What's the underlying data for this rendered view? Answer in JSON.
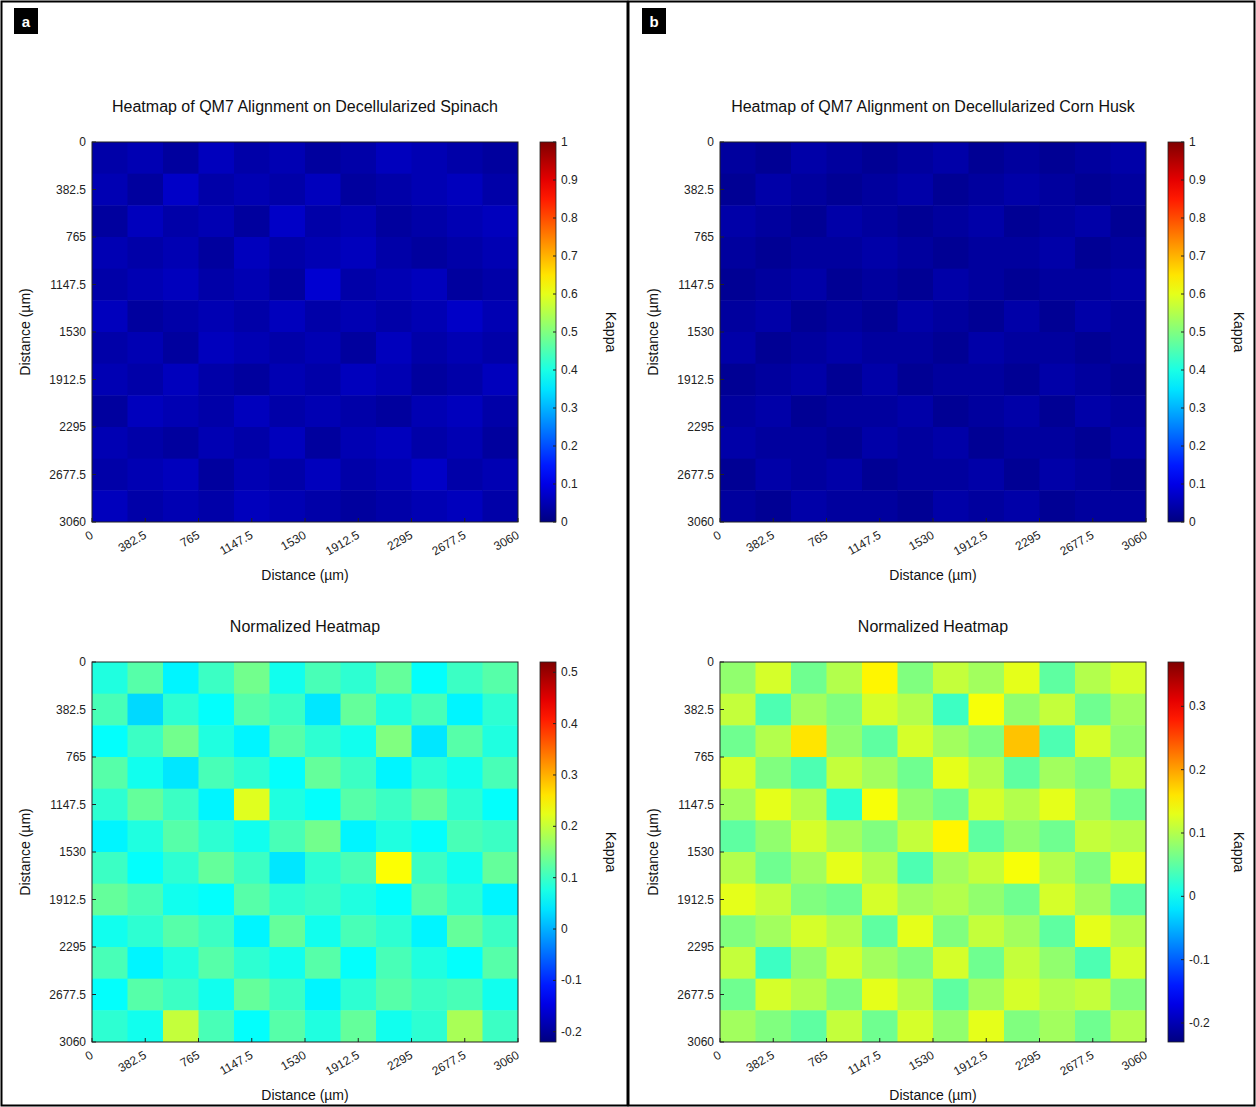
{
  "chart_data": [
    {
      "type": "heatmap",
      "panel_label": "a",
      "title": "Heatmap of QM7 Alignment on Decellularized Spinach",
      "x_label": "Distance (µm)",
      "y_label": "Distance (µm)",
      "xlim": [
        0,
        3060
      ],
      "ylim": [
        0,
        3060
      ],
      "xticks": [
        0,
        382.5,
        765,
        1147.5,
        1530,
        1912.5,
        2295,
        2677.5,
        3060
      ],
      "yticks": [
        0,
        382.5,
        765,
        1147.5,
        1530,
        1912.5,
        2295,
        2677.5,
        3060
      ],
      "colorbar": {
        "label": "Kappa",
        "lim": [
          0,
          1
        ],
        "ticks": [
          0,
          0.1,
          0.2,
          0.3,
          0.4,
          0.5,
          0.6,
          0.7,
          0.8,
          0.9,
          1
        ]
      },
      "cells": [
        [
          0.04,
          0.05,
          0.03,
          0.06,
          0.04,
          0.05,
          0.03,
          0.04,
          0.06,
          0.05,
          0.04,
          0.03
        ],
        [
          0.05,
          0.03,
          0.07,
          0.04,
          0.05,
          0.04,
          0.06,
          0.03,
          0.04,
          0.05,
          0.06,
          0.04
        ],
        [
          0.03,
          0.06,
          0.04,
          0.05,
          0.03,
          0.07,
          0.04,
          0.05,
          0.03,
          0.04,
          0.05,
          0.06
        ],
        [
          0.05,
          0.04,
          0.05,
          0.03,
          0.06,
          0.04,
          0.05,
          0.06,
          0.04,
          0.03,
          0.04,
          0.05
        ],
        [
          0.04,
          0.05,
          0.06,
          0.04,
          0.05,
          0.03,
          0.08,
          0.04,
          0.05,
          0.06,
          0.03,
          0.04
        ],
        [
          0.06,
          0.03,
          0.04,
          0.05,
          0.04,
          0.06,
          0.04,
          0.05,
          0.04,
          0.05,
          0.07,
          0.05
        ],
        [
          0.04,
          0.05,
          0.03,
          0.06,
          0.05,
          0.04,
          0.05,
          0.03,
          0.06,
          0.04,
          0.05,
          0.04
        ],
        [
          0.05,
          0.04,
          0.06,
          0.04,
          0.03,
          0.05,
          0.04,
          0.06,
          0.05,
          0.03,
          0.04,
          0.06
        ],
        [
          0.03,
          0.06,
          0.05,
          0.04,
          0.06,
          0.04,
          0.05,
          0.04,
          0.03,
          0.05,
          0.06,
          0.04
        ],
        [
          0.05,
          0.04,
          0.03,
          0.05,
          0.04,
          0.06,
          0.03,
          0.05,
          0.06,
          0.04,
          0.05,
          0.03
        ],
        [
          0.04,
          0.05,
          0.06,
          0.03,
          0.05,
          0.04,
          0.06,
          0.04,
          0.05,
          0.07,
          0.04,
          0.05
        ],
        [
          0.06,
          0.04,
          0.05,
          0.04,
          0.06,
          0.05,
          0.04,
          0.03,
          0.04,
          0.05,
          0.06,
          0.04
        ]
      ]
    },
    {
      "type": "heatmap",
      "title": "Normalized Heatmap",
      "x_label": "Distance (µm)",
      "y_label": "Distance (µm)",
      "xlim": [
        0,
        3060
      ],
      "ylim": [
        0,
        3060
      ],
      "xticks": [
        0,
        382.5,
        765,
        1147.5,
        1530,
        1912.5,
        2295,
        2677.5,
        3060
      ],
      "yticks": [
        0,
        382.5,
        765,
        1147.5,
        1530,
        1912.5,
        2295,
        2677.5,
        3060
      ],
      "colorbar": {
        "label": "Kappa",
        "lim": [
          -0.22,
          0.52
        ],
        "ticks": [
          -0.2,
          -0.1,
          0,
          0.1,
          0.2,
          0.3,
          0.4,
          0.5
        ]
      },
      "cells": [
        [
          0.08,
          0.12,
          0.05,
          0.1,
          0.14,
          0.07,
          0.11,
          0.09,
          0.13,
          0.06,
          0.1,
          0.12
        ],
        [
          0.11,
          0.03,
          0.09,
          0.06,
          0.12,
          0.1,
          0.04,
          0.13,
          0.08,
          0.11,
          0.05,
          0.09
        ],
        [
          0.06,
          0.1,
          0.14,
          0.08,
          0.05,
          0.12,
          0.09,
          0.07,
          0.15,
          0.04,
          0.12,
          0.08
        ],
        [
          0.12,
          0.07,
          0.04,
          0.11,
          0.09,
          0.06,
          0.13,
          0.1,
          0.05,
          0.09,
          0.07,
          0.11
        ],
        [
          0.09,
          0.13,
          0.1,
          0.05,
          0.22,
          0.08,
          0.06,
          0.12,
          0.1,
          0.13,
          0.09,
          0.06
        ],
        [
          0.05,
          0.08,
          0.12,
          0.09,
          0.07,
          0.11,
          0.14,
          0.05,
          0.08,
          0.06,
          0.11,
          0.1
        ],
        [
          0.1,
          0.06,
          0.09,
          0.13,
          0.1,
          0.04,
          0.09,
          0.11,
          0.24,
          0.1,
          0.07,
          0.13
        ],
        [
          0.13,
          0.11,
          0.07,
          0.06,
          0.12,
          0.09,
          0.1,
          0.08,
          0.06,
          0.12,
          0.09,
          0.05
        ],
        [
          0.07,
          0.09,
          0.12,
          0.1,
          0.05,
          0.13,
          0.07,
          0.11,
          0.09,
          0.05,
          0.13,
          0.1
        ],
        [
          0.11,
          0.05,
          0.08,
          0.12,
          0.09,
          0.07,
          0.12,
          0.06,
          0.11,
          0.08,
          0.06,
          0.12
        ],
        [
          0.06,
          0.12,
          0.1,
          0.07,
          0.13,
          0.1,
          0.05,
          0.09,
          0.12,
          0.1,
          0.11,
          0.07
        ],
        [
          0.09,
          0.07,
          0.2,
          0.11,
          0.06,
          0.12,
          0.08,
          0.13,
          0.07,
          0.09,
          0.18,
          0.1
        ]
      ]
    },
    {
      "type": "heatmap",
      "panel_label": "b",
      "title": "Heatmap of QM7 Alignment on Decellularized Corn Husk",
      "x_label": "Distance (µm)",
      "y_label": "Distance (µm)",
      "xlim": [
        0,
        3060
      ],
      "ylim": [
        0,
        3060
      ],
      "xticks": [
        0,
        382.5,
        765,
        1147.5,
        1530,
        1912.5,
        2295,
        2677.5,
        3060
      ],
      "yticks": [
        0,
        382.5,
        765,
        1147.5,
        1530,
        1912.5,
        2295,
        2677.5,
        3060
      ],
      "colorbar": {
        "label": "Kappa",
        "lim": [
          0,
          1
        ],
        "ticks": [
          0,
          0.1,
          0.2,
          0.3,
          0.4,
          0.5,
          0.6,
          0.7,
          0.8,
          0.9,
          1
        ]
      },
      "cells": [
        [
          0.03,
          0.02,
          0.04,
          0.03,
          0.02,
          0.03,
          0.04,
          0.02,
          0.03,
          0.02,
          0.03,
          0.04
        ],
        [
          0.02,
          0.04,
          0.03,
          0.02,
          0.03,
          0.04,
          0.02,
          0.03,
          0.04,
          0.03,
          0.02,
          0.03
        ],
        [
          0.04,
          0.03,
          0.02,
          0.04,
          0.03,
          0.02,
          0.03,
          0.04,
          0.02,
          0.03,
          0.04,
          0.02
        ],
        [
          0.03,
          0.02,
          0.03,
          0.03,
          0.04,
          0.03,
          0.02,
          0.03,
          0.03,
          0.04,
          0.02,
          0.03
        ],
        [
          0.02,
          0.03,
          0.04,
          0.02,
          0.03,
          0.02,
          0.04,
          0.03,
          0.02,
          0.03,
          0.03,
          0.04
        ],
        [
          0.03,
          0.04,
          0.02,
          0.03,
          0.02,
          0.04,
          0.03,
          0.02,
          0.04,
          0.02,
          0.04,
          0.03
        ],
        [
          0.04,
          0.02,
          0.03,
          0.04,
          0.03,
          0.03,
          0.02,
          0.04,
          0.03,
          0.03,
          0.02,
          0.03
        ],
        [
          0.02,
          0.03,
          0.04,
          0.02,
          0.04,
          0.02,
          0.03,
          0.03,
          0.02,
          0.04,
          0.03,
          0.02
        ],
        [
          0.03,
          0.04,
          0.02,
          0.03,
          0.03,
          0.04,
          0.02,
          0.03,
          0.04,
          0.02,
          0.04,
          0.03
        ],
        [
          0.04,
          0.03,
          0.03,
          0.02,
          0.04,
          0.03,
          0.04,
          0.02,
          0.03,
          0.03,
          0.02,
          0.04
        ],
        [
          0.02,
          0.04,
          0.03,
          0.04,
          0.02,
          0.03,
          0.03,
          0.04,
          0.02,
          0.04,
          0.03,
          0.02
        ],
        [
          0.03,
          0.02,
          0.04,
          0.03,
          0.03,
          0.02,
          0.04,
          0.03,
          0.04,
          0.02,
          0.03,
          0.03
        ]
      ]
    },
    {
      "type": "heatmap",
      "title": "Normalized Heatmap",
      "x_label": "Distance (µm)",
      "y_label": "Distance (µm)",
      "xlim": [
        0,
        3060
      ],
      "ylim": [
        0,
        3060
      ],
      "xticks": [
        0,
        382.5,
        765,
        1147.5,
        1530,
        1912.5,
        2295,
        2677.5,
        3060
      ],
      "yticks": [
        0,
        382.5,
        765,
        1147.5,
        1530,
        1912.5,
        2295,
        2677.5,
        3060
      ],
      "colorbar": {
        "label": "Kappa",
        "lim": [
          -0.23,
          0.37
        ],
        "ticks": [
          -0.2,
          -0.1,
          0,
          0.1,
          0.2,
          0.3
        ]
      },
      "cells": [
        [
          0.08,
          0.12,
          0.06,
          0.1,
          0.15,
          0.07,
          0.11,
          0.09,
          0.13,
          0.05,
          0.1,
          0.12
        ],
        [
          0.11,
          0.04,
          0.09,
          0.07,
          0.12,
          0.1,
          0.03,
          0.14,
          0.08,
          0.11,
          0.06,
          0.09
        ],
        [
          0.06,
          0.1,
          0.16,
          0.08,
          0.05,
          0.12,
          0.09,
          0.07,
          0.18,
          0.04,
          0.12,
          0.08
        ],
        [
          0.12,
          0.07,
          0.04,
          0.11,
          0.09,
          0.06,
          0.13,
          0.1,
          0.05,
          0.09,
          0.07,
          0.11
        ],
        [
          0.09,
          0.13,
          0.1,
          0.02,
          0.14,
          0.08,
          0.06,
          0.12,
          0.1,
          0.13,
          0.09,
          0.06
        ],
        [
          0.05,
          0.08,
          0.12,
          0.09,
          0.07,
          0.11,
          0.15,
          0.05,
          0.08,
          0.06,
          0.11,
          0.1
        ],
        [
          0.1,
          0.06,
          0.09,
          0.13,
          0.1,
          0.04,
          0.09,
          0.11,
          0.14,
          0.1,
          0.07,
          0.13
        ],
        [
          0.13,
          0.11,
          0.07,
          0.06,
          0.12,
          0.09,
          0.1,
          0.08,
          0.06,
          0.12,
          0.09,
          0.05
        ],
        [
          0.07,
          0.09,
          0.12,
          0.1,
          0.05,
          0.13,
          0.07,
          0.11,
          0.09,
          0.05,
          0.13,
          0.1
        ],
        [
          0.11,
          0.03,
          0.08,
          0.12,
          0.09,
          0.07,
          0.12,
          0.06,
          0.11,
          0.08,
          0.04,
          0.12
        ],
        [
          0.06,
          0.12,
          0.1,
          0.07,
          0.13,
          0.1,
          0.05,
          0.09,
          0.12,
          0.1,
          0.11,
          0.07
        ],
        [
          0.09,
          0.07,
          0.05,
          0.11,
          0.06,
          0.12,
          0.08,
          0.13,
          0.07,
          0.09,
          0.06,
          0.1
        ]
      ]
    }
  ]
}
